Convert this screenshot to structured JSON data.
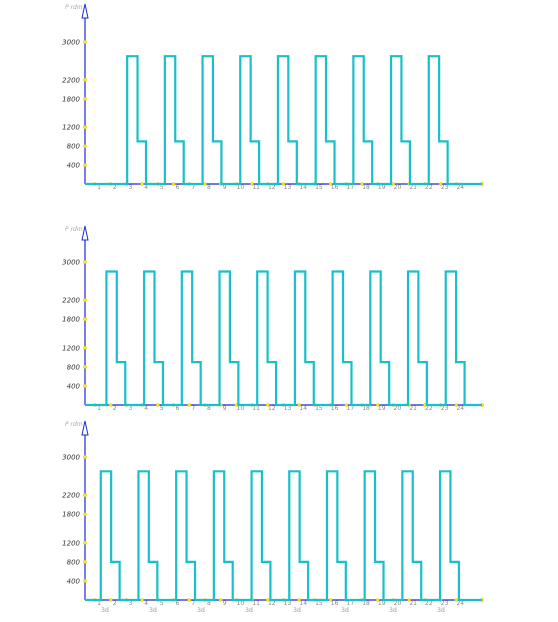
{
  "chart_data": [
    {
      "type": "line",
      "unit_label": "P rdm",
      "y_ticks": [
        3000,
        2200,
        1800,
        1200,
        800,
        400
      ],
      "x_ticks": [
        "1",
        "2",
        "3",
        "4",
        "5",
        "6",
        "7",
        "8",
        "9",
        "10",
        "11",
        "12",
        "13",
        "14",
        "15",
        "16",
        "17",
        "18",
        "19",
        "20",
        "21",
        "22",
        "23",
        "24"
      ],
      "pulses": [
        {
          "start": 1.6,
          "end": 2.2,
          "level1": 2700,
          "level2": 900
        },
        {
          "start": 3.6,
          "end": 4.2,
          "level1": 2700,
          "level2": 900
        },
        {
          "start": 5.6,
          "end": 6.2,
          "level1": 2700,
          "level2": 900
        },
        {
          "start": 7.6,
          "end": 8.2,
          "level1": 2700,
          "level2": 900
        },
        {
          "start": 9.6,
          "end": 10.2,
          "level1": 2700,
          "level2": 900
        },
        {
          "start": 11.6,
          "end": 12.2,
          "level1": 2700,
          "level2": 900
        },
        {
          "start": 13.6,
          "end": 14.2,
          "level1": 2700,
          "level2": 900
        },
        {
          "start": 15.6,
          "end": 16.2,
          "level1": 2700,
          "level2": 900
        },
        {
          "start": 17.6,
          "end": 18.2,
          "level1": 2700,
          "level2": 900
        }
      ]
    },
    {
      "type": "line",
      "unit_label": "P rdm",
      "y_ticks": [
        3000,
        2200,
        1800,
        1200,
        800,
        400
      ],
      "x_ticks": [
        "1",
        "2",
        "3",
        "4",
        "5",
        "6",
        "7",
        "8",
        "9",
        "10",
        "11",
        "12",
        "13",
        "14",
        "15",
        "16",
        "17",
        "18",
        "19",
        "20",
        "21",
        "22",
        "23",
        "24"
      ],
      "pulses": [
        {
          "start": 0.5,
          "end": 1.1,
          "level1": 2800,
          "level2": 900
        },
        {
          "start": 2.5,
          "end": 3.1,
          "level1": 2800,
          "level2": 900
        },
        {
          "start": 4.5,
          "end": 5.1,
          "level1": 2800,
          "level2": 900
        },
        {
          "start": 6.5,
          "end": 7.1,
          "level1": 2800,
          "level2": 900
        },
        {
          "start": 8.5,
          "end": 9.1,
          "level1": 2800,
          "level2": 900
        },
        {
          "start": 10.5,
          "end": 11.1,
          "level1": 2800,
          "level2": 900
        },
        {
          "start": 12.5,
          "end": 13.1,
          "level1": 2800,
          "level2": 900
        },
        {
          "start": 14.5,
          "end": 15.1,
          "level1": 2800,
          "level2": 900
        },
        {
          "start": 16.5,
          "end": 17.1,
          "level1": 2800,
          "level2": 900
        },
        {
          "start": 18.5,
          "end": 19.1,
          "level1": 2800,
          "level2": 900
        }
      ]
    },
    {
      "type": "line",
      "unit_label": "P rdm",
      "y_ticks": [
        3000,
        2200,
        1800,
        1200,
        800,
        400
      ],
      "x_ticks": [
        "1",
        "2",
        "3",
        "4",
        "5",
        "6",
        "7",
        "8",
        "9",
        "10",
        "11",
        "12",
        "13",
        "14",
        "15",
        "16",
        "17",
        "18",
        "19",
        "20",
        "21",
        "22",
        "23",
        "24"
      ],
      "x_subticks": [
        "3d",
        "3d",
        "3d",
        "3d",
        "3d",
        "3d",
        "3d",
        "3d"
      ],
      "pulses": [
        {
          "start": 0.2,
          "end": 0.8,
          "level1": 2700,
          "level2": 800
        },
        {
          "start": 2.2,
          "end": 2.8,
          "level1": 2700,
          "level2": 800
        },
        {
          "start": 4.2,
          "end": 4.8,
          "level1": 2700,
          "level2": 800
        },
        {
          "start": 6.2,
          "end": 6.8,
          "level1": 2700,
          "level2": 800
        },
        {
          "start": 8.2,
          "end": 8.8,
          "level1": 2700,
          "level2": 800
        },
        {
          "start": 10.2,
          "end": 10.8,
          "level1": 2700,
          "level2": 800
        },
        {
          "start": 12.2,
          "end": 12.8,
          "level1": 2700,
          "level2": 800
        },
        {
          "start": 14.2,
          "end": 14.8,
          "level1": 2700,
          "level2": 800
        },
        {
          "start": 16.2,
          "end": 16.8,
          "level1": 2700,
          "level2": 800
        },
        {
          "start": 18.2,
          "end": 18.8,
          "level1": 2700,
          "level2": 800
        }
      ]
    }
  ]
}
